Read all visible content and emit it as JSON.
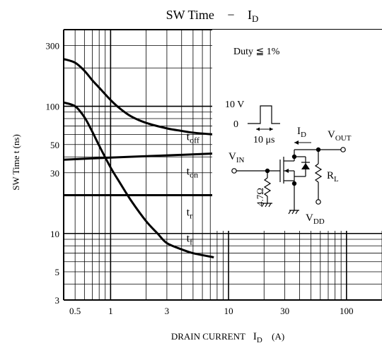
{
  "chart_data": {
    "type": "line",
    "title_main": "SW Time",
    "title_dash": "−",
    "title_var": "I",
    "title_sub": "D",
    "xlabel_main": "DRAIN CURRENT",
    "xlabel_var": "I",
    "xlabel_sub": "D",
    "xlabel_unit": "(A)",
    "ylabel": "SW Time  t  (ns)",
    "x_scale": "log",
    "y_scale": "log",
    "xlim": [
      0.4,
      200
    ],
    "ylim": [
      3,
      400
    ],
    "x_ticks": [
      {
        "v": 0.5,
        "label": "0.5"
      },
      {
        "v": 1,
        "label": "1"
      },
      {
        "v": 3,
        "label": "3"
      },
      {
        "v": 10,
        "label": "10"
      },
      {
        "v": 30,
        "label": "30"
      },
      {
        "v": 100,
        "label": "100"
      }
    ],
    "y_ticks": [
      {
        "v": 3,
        "label": "3"
      },
      {
        "v": 5,
        "label": "5"
      },
      {
        "v": 10,
        "label": "10"
      },
      {
        "v": 30,
        "label": "30"
      },
      {
        "v": 50,
        "label": "50"
      },
      {
        "v": 100,
        "label": "100"
      },
      {
        "v": 300,
        "label": "300"
      }
    ],
    "grid": true,
    "series": [
      {
        "name": "t_off",
        "label_main": "t",
        "label_sub": "off",
        "x": [
          0.4,
          0.5,
          0.6,
          0.7,
          0.8,
          1.0,
          1.2,
          1.5,
          2.0,
          3.0,
          4.0,
          5.0,
          7.5
        ],
        "y": [
          235,
          220,
          190,
          160,
          140,
          112,
          96,
          83,
          74,
          67,
          64,
          62,
          60
        ]
      },
      {
        "name": "t_on",
        "label_main": "t",
        "label_sub": "on",
        "x": [
          0.4,
          1,
          2,
          4,
          7.5
        ],
        "y": [
          38,
          39.5,
          40.5,
          41.5,
          42.5
        ]
      },
      {
        "name": "t_r",
        "label_main": "t",
        "label_sub": "r",
        "x": [
          0.4,
          7.5
        ],
        "y": [
          20,
          20
        ]
      },
      {
        "name": "t_f",
        "label_main": "t",
        "label_sub": "f",
        "x": [
          0.4,
          0.5,
          0.6,
          0.7,
          0.8,
          1.0,
          1.2,
          1.5,
          2.0,
          2.5,
          3.0,
          4.0,
          5.0,
          7.5
        ],
        "y": [
          107,
          100,
          82,
          63,
          49,
          33,
          25,
          18,
          12.5,
          10,
          8.4,
          7.5,
          7.0,
          6.5
        ]
      }
    ],
    "annotation": {
      "duty": "Duty ≦ 1%",
      "pulse_v": "10 V",
      "pulse_zero": "0",
      "pulse_time": "10 μs",
      "id_main": "I",
      "id_sub": "D",
      "vout_main": "V",
      "vout_sub": "OUT",
      "vin_main": "V",
      "vin_sub": "IN",
      "rg": "4.7Ω",
      "rl_main": "R",
      "rl_sub": "L",
      "vdd_main": "V",
      "vdd_sub": "DD"
    }
  }
}
